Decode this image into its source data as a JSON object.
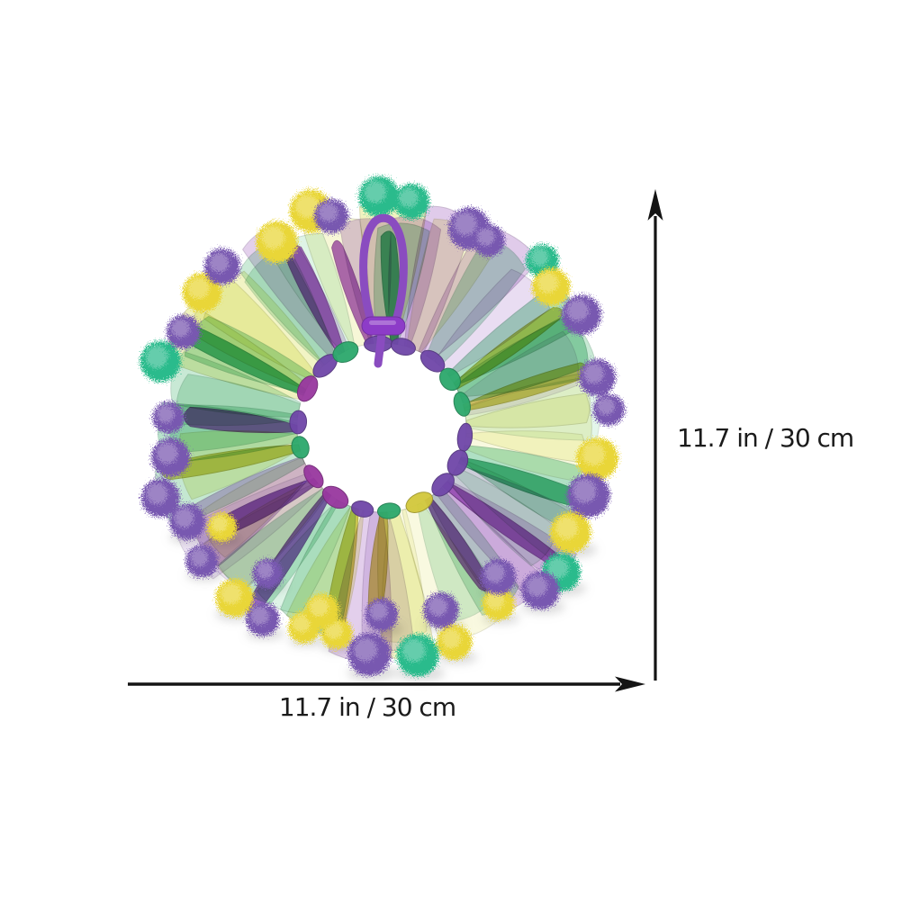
{
  "page": {
    "background_color": "#ffffff"
  },
  "product_photo": {
    "subject": "ribbon-pom-pom-collar-wreath",
    "colors": {
      "pom_yellow": "#e9d637",
      "pom_purple": "#7858b0",
      "pom_green": "#2cbb8c",
      "pom_mint": "#a8e4c8",
      "ribbon_palette": [
        "#9ed8b4",
        "#c8ecd6",
        "#e6e98f",
        "#f2f3c0",
        "#bb8fd4",
        "#dcc9ea",
        "#72c898",
        "#cfaede"
      ],
      "accent_palette": [
        "#9a44b6",
        "#2fae74",
        "#cfc63e",
        "#7a3fae"
      ],
      "knot_palette": [
        "#2ca86c",
        "#98379f",
        "#d2c83c",
        "#6f46a8"
      ],
      "cord_purple": "#8a4cc0",
      "bead_purple": "#8d3cc8",
      "hole_white": "#ffffff",
      "shadow_gray": "#9c9c9c"
    }
  },
  "dimensions": {
    "height": {
      "label": "11.7 in / 30 cm"
    },
    "width": {
      "label": "11.7 in / 30 cm"
    },
    "arrow_color": "#141414",
    "label_color": "#1b1b1b"
  }
}
